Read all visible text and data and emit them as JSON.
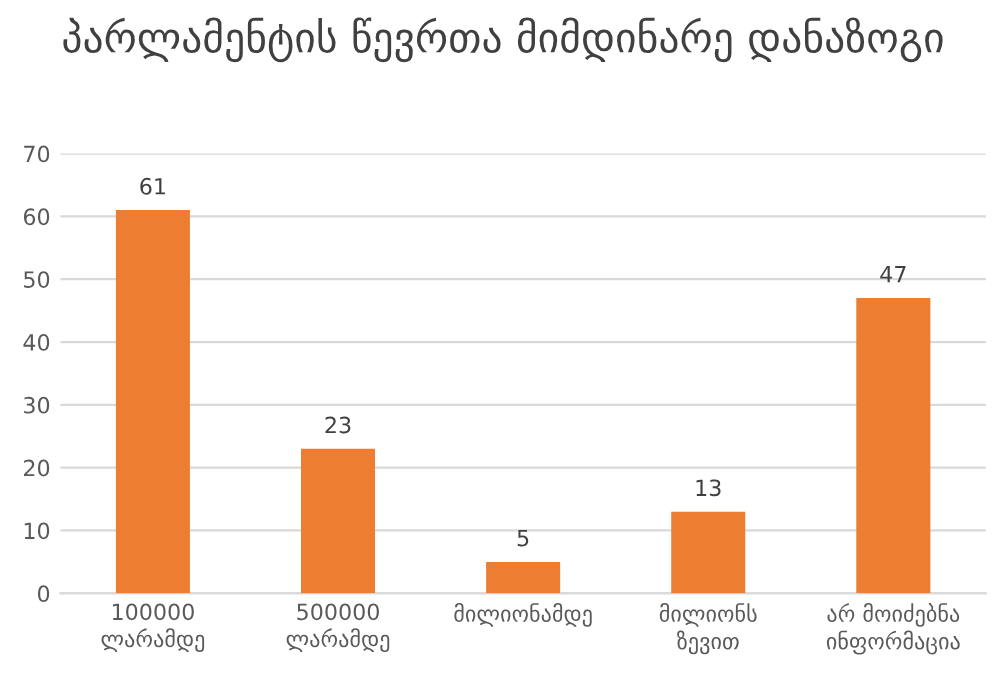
{
  "chart_data": {
    "type": "bar",
    "title": "პარლამენტის წევრთა მიმდინარე დანაზოგი",
    "categories": [
      "100000\nლარამდე",
      "500000\nლარამდე",
      "მილიონამდე",
      "მილიონს\nზევით",
      "არ მოიძებნა\nინფორმაცია"
    ],
    "values": [
      61,
      23,
      5,
      13,
      47
    ],
    "color": "#ed7d31",
    "ylim": [
      0,
      70
    ],
    "yticks": [
      0,
      10,
      20,
      30,
      40,
      50,
      60,
      70
    ],
    "grid": "y",
    "data_labels": true
  }
}
